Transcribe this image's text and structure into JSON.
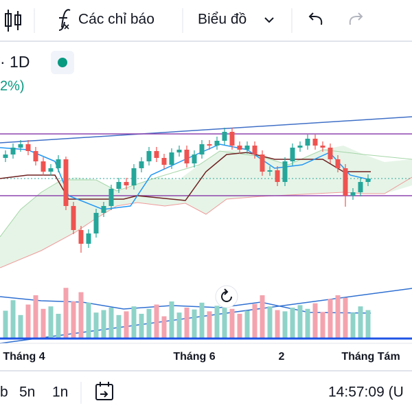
{
  "toolbar": {
    "indicators": "Các chỉ báo",
    "chart_menu": "Biểu đồ"
  },
  "legend": {
    "interval": "· 1D",
    "change": "2%)"
  },
  "bottom_bar": {
    "ranges": [
      "b",
      "5n",
      "1n"
    ],
    "clock": "14:57:09 (U"
  },
  "chart_data": {
    "type": "candlestick",
    "x_labels": [
      "Tháng 4",
      "Tháng 6",
      "2",
      "Tháng Tám"
    ],
    "ylim": [
      0,
      340
    ],
    "volume_lim": [
      0,
      100
    ],
    "up_color": "#26a69a",
    "down_color": "#ef5350",
    "up_volume_color": "#8fd3c8",
    "down_volume_color": "#f4a3ae",
    "open": [
      170,
      175,
      185,
      190,
      180,
      165,
      150,
      155,
      168,
      100,
      65,
      45,
      60,
      90,
      100,
      125,
      135,
      130,
      155,
      165,
      180,
      170,
      160,
      178,
      182,
      162,
      175,
      190,
      188,
      195,
      208,
      188,
      182,
      188,
      175,
      150,
      152,
      135,
      165,
      185,
      188,
      198,
      188,
      185,
      168,
      155,
      115,
      120,
      135
    ],
    "close": [
      175,
      185,
      190,
      180,
      165,
      150,
      155,
      168,
      100,
      65,
      45,
      60,
      90,
      100,
      125,
      135,
      130,
      155,
      165,
      180,
      170,
      160,
      178,
      182,
      162,
      175,
      190,
      188,
      195,
      208,
      188,
      182,
      188,
      175,
      150,
      152,
      135,
      165,
      185,
      188,
      198,
      188,
      185,
      168,
      155,
      115,
      120,
      135,
      140
    ],
    "high": [
      181,
      191,
      196,
      196,
      186,
      171,
      161,
      174,
      172,
      106,
      71,
      66,
      96,
      106,
      131,
      141,
      141,
      161,
      171,
      186,
      186,
      176,
      184,
      188,
      188,
      181,
      196,
      196,
      201,
      214,
      214,
      194,
      194,
      194,
      181,
      158,
      158,
      171,
      191,
      194,
      204,
      204,
      194,
      191,
      174,
      161,
      126,
      141,
      146
    ],
    "low": [
      164,
      169,
      179,
      174,
      159,
      144,
      144,
      149,
      94,
      59,
      32,
      39,
      54,
      84,
      94,
      119,
      124,
      124,
      149,
      159,
      164,
      154,
      154,
      172,
      156,
      156,
      169,
      182,
      182,
      189,
      182,
      176,
      176,
      169,
      144,
      144,
      129,
      129,
      159,
      179,
      182,
      182,
      179,
      162,
      149,
      99,
      109,
      114,
      129
    ],
    "volume": [
      45,
      62,
      38,
      55,
      70,
      48,
      52,
      40,
      82,
      60,
      75,
      58,
      42,
      46,
      50,
      38,
      44,
      52,
      40,
      48,
      55,
      36,
      60,
      42,
      50,
      47,
      58,
      44,
      53,
      62,
      48,
      40,
      45,
      56,
      70,
      52,
      46,
      44,
      50,
      54,
      48,
      57,
      43,
      64,
      70,
      66,
      42,
      52,
      46
    ]
  }
}
